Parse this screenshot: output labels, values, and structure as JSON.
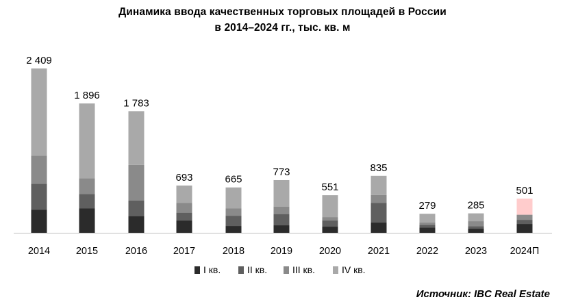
{
  "chart_data": {
    "type": "bar",
    "stacked": true,
    "title": "Динамика ввода качественных торговых площадей в России",
    "subtitle": "в 2014–2024 гг., тыс. кв. м",
    "categories": [
      "2014",
      "2015",
      "2016",
      "2017",
      "2018",
      "2019",
      "2020",
      "2021",
      "2022",
      "2023",
      "2024П"
    ],
    "series": [
      {
        "name": "I кв.",
        "color": "#2b2b2b",
        "values": [
          340,
          360,
          245,
          180,
          100,
          110,
          90,
          150,
          75,
          60,
          130
        ]
      },
      {
        "name": "II кв.",
        "color": "#5f5f5f",
        "values": [
          380,
          210,
          230,
          115,
          150,
          165,
          90,
          290,
          40,
          35,
          60
        ]
      },
      {
        "name": "III кв.",
        "color": "#8a8a8a",
        "values": [
          410,
          230,
          520,
          145,
          110,
          110,
          50,
          115,
          35,
          75,
          75
        ]
      },
      {
        "name": "IV кв.",
        "color": "#a9a9a9",
        "values": [
          1279,
          1096,
          788,
          253,
          305,
          388,
          321,
          280,
          129,
          115,
          236
        ]
      }
    ],
    "totals": [
      "2 409",
      "1 896",
      "1 783",
      "693",
      "665",
      "773",
      "551",
      "835",
      "279",
      "285",
      "501"
    ],
    "forecast_index": 10,
    "forecast_top_color": "#ffcccc",
    "ylim": [
      0,
      2409
    ],
    "xlabel": "",
    "ylabel": "",
    "grid": false,
    "legend_position": "bottom"
  },
  "source": "Источник: IBC Real Estate"
}
